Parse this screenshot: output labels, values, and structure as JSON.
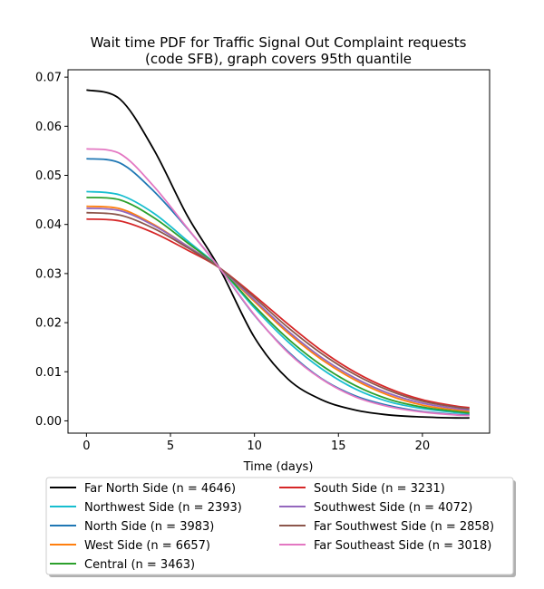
{
  "chart_data": {
    "type": "line",
    "title_line1": "Wait time PDF for Traffic Signal Out Complaint  requests",
    "title_line2": "(code SFB), graph covers 95th quantile",
    "xlabel": "Time (days)",
    "ylabel": "",
    "xlim": [
      -1.1,
      24.0
    ],
    "ylim": [
      -0.0025,
      0.0715
    ],
    "xticks": [
      0,
      5,
      10,
      15,
      20
    ],
    "yticks": [
      0.0,
      0.01,
      0.02,
      0.03,
      0.04,
      0.05,
      0.06,
      0.07
    ],
    "ytick_labels": [
      "0.00",
      "0.01",
      "0.02",
      "0.03",
      "0.04",
      "0.05",
      "0.06",
      "0.07"
    ],
    "grid": false,
    "legend_placement": "below",
    "x": [
      0,
      2,
      4,
      6,
      7.9,
      10,
      12,
      14,
      16,
      18,
      20,
      22,
      22.8
    ],
    "series": [
      {
        "name": "Far North Side (n = 4646)",
        "color": "#000000",
        "values": [
          0.0674,
          0.0655,
          0.0553,
          0.0418,
          0.0312,
          0.017,
          0.0085,
          0.0043,
          0.0022,
          0.0012,
          0.0008,
          0.0006,
          0.0006
        ]
      },
      {
        "name": "Northwest Side (n = 2393)",
        "color": "#17becf",
        "values": [
          0.0467,
          0.046,
          0.0423,
          0.0367,
          0.0312,
          0.023,
          0.0161,
          0.0106,
          0.0065,
          0.0039,
          0.0025,
          0.0017,
          0.0015
        ]
      },
      {
        "name": "North Side (n = 3983)",
        "color": "#1f77b4",
        "values": [
          0.0534,
          0.0525,
          0.0468,
          0.0392,
          0.0312,
          0.0215,
          0.0141,
          0.0086,
          0.0051,
          0.0031,
          0.0019,
          0.0013,
          0.0012
        ]
      },
      {
        "name": "West Side (n = 6657)",
        "color": "#ff7f0e",
        "values": [
          0.0437,
          0.0432,
          0.04,
          0.0356,
          0.0312,
          0.0243,
          0.0179,
          0.0125,
          0.0083,
          0.0052,
          0.0032,
          0.0022,
          0.0019
        ]
      },
      {
        "name": "Central (n = 3463)",
        "color": "#2ca02c",
        "values": [
          0.0455,
          0.045,
          0.0414,
          0.0363,
          0.0312,
          0.0234,
          0.0167,
          0.0113,
          0.0072,
          0.0044,
          0.0028,
          0.0019,
          0.0016
        ]
      },
      {
        "name": "South Side (n = 3231)",
        "color": "#d62728",
        "values": [
          0.0411,
          0.0407,
          0.0383,
          0.0348,
          0.0312,
          0.0255,
          0.0197,
          0.0143,
          0.0099,
          0.0066,
          0.0043,
          0.003,
          0.0027
        ]
      },
      {
        "name": "Southwest Side (n = 4072)",
        "color": "#9467bd",
        "values": [
          0.0433,
          0.0428,
          0.0398,
          0.0356,
          0.0312,
          0.0246,
          0.0183,
          0.0129,
          0.0087,
          0.0056,
          0.0036,
          0.0025,
          0.0022
        ]
      },
      {
        "name": "Far Southwest Side (n = 2858)",
        "color": "#8c564b",
        "values": [
          0.0424,
          0.0419,
          0.0392,
          0.0353,
          0.0312,
          0.0251,
          0.019,
          0.0137,
          0.0094,
          0.0062,
          0.004,
          0.0028,
          0.0025
        ]
      },
      {
        "name": "Far Southeast Side (n = 3018)",
        "color": "#e377c2",
        "values": [
          0.0554,
          0.0544,
          0.0478,
          0.0393,
          0.0312,
          0.0216,
          0.0139,
          0.0085,
          0.0049,
          0.0029,
          0.0018,
          0.0012,
          0.0011
        ]
      }
    ]
  }
}
